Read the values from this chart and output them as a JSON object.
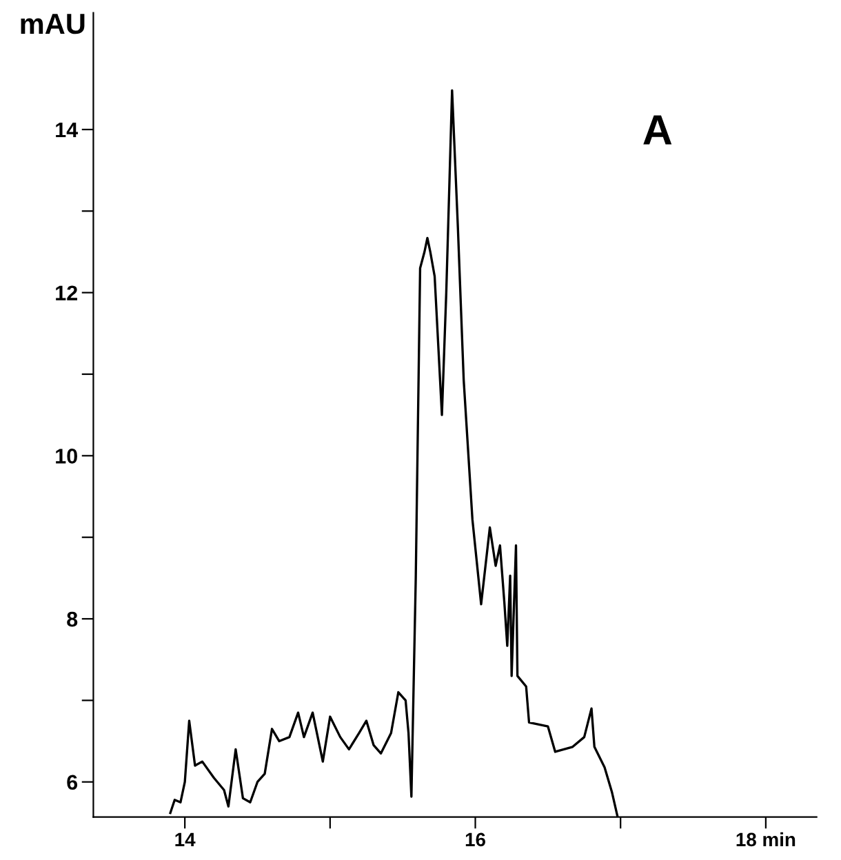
{
  "chart_data": {
    "type": "line",
    "ylabel": "mAU",
    "annotations": [
      "A"
    ],
    "x": [
      13.9,
      13.93,
      13.97,
      14.0,
      14.03,
      14.07,
      14.12,
      14.2,
      14.27,
      14.3,
      14.35,
      14.4,
      14.45,
      14.5,
      14.55,
      14.6,
      14.65,
      14.72,
      14.78,
      14.82,
      14.88,
      14.95,
      15.0,
      15.07,
      15.13,
      15.2,
      15.25,
      15.3,
      15.35,
      15.42,
      15.47,
      15.52,
      15.54,
      15.56,
      15.59,
      15.62,
      15.65,
      15.67,
      15.69,
      15.72,
      15.77,
      15.8,
      15.84,
      15.88,
      15.92,
      15.98,
      16.04,
      16.1,
      16.14,
      16.17,
      16.2,
      16.22,
      16.24,
      16.25,
      16.28,
      16.29,
      16.35,
      16.37,
      16.5,
      16.55,
      16.67,
      16.75,
      16.8,
      16.82,
      16.89,
      16.94,
      16.98
    ],
    "series": [
      {
        "color": "#000000",
        "values": [
          5.62,
          5.78,
          5.75,
          6.0,
          6.75,
          6.2,
          6.25,
          6.05,
          5.9,
          5.7,
          6.4,
          5.8,
          5.75,
          6.0,
          6.1,
          6.65,
          6.5,
          6.55,
          6.85,
          6.55,
          6.85,
          6.25,
          6.8,
          6.55,
          6.4,
          6.6,
          6.75,
          6.45,
          6.35,
          6.6,
          7.1,
          7.0,
          6.6,
          5.82,
          8.5,
          12.3,
          12.5,
          12.67,
          12.5,
          12.2,
          10.5,
          12.0,
          14.48,
          12.8,
          10.93,
          9.22,
          8.18,
          9.12,
          8.65,
          8.9,
          8.2,
          7.67,
          8.53,
          7.3,
          8.9,
          7.3,
          7.17,
          6.73,
          6.68,
          6.37,
          6.43,
          6.55,
          6.9,
          6.43,
          6.18,
          5.88,
          5.57
        ]
      }
    ],
    "xlim": [
      13.37,
      18.35
    ],
    "ylim": [
      5.57,
      15.43
    ],
    "xticks": [
      14,
      {
        "value": 15,
        "label": null
      },
      16,
      {
        "value": 17,
        "label": null
      },
      {
        "value": 18,
        "label": "18 min"
      }
    ],
    "yticks": [
      6,
      {
        "value": 7,
        "label": null
      },
      8,
      {
        "value": 9,
        "label": null
      },
      10,
      {
        "value": 11,
        "label": null
      },
      12,
      {
        "value": 13,
        "label": null
      },
      14
    ],
    "marker": "none",
    "line_style": "solid",
    "grid": false,
    "legend": false
  }
}
